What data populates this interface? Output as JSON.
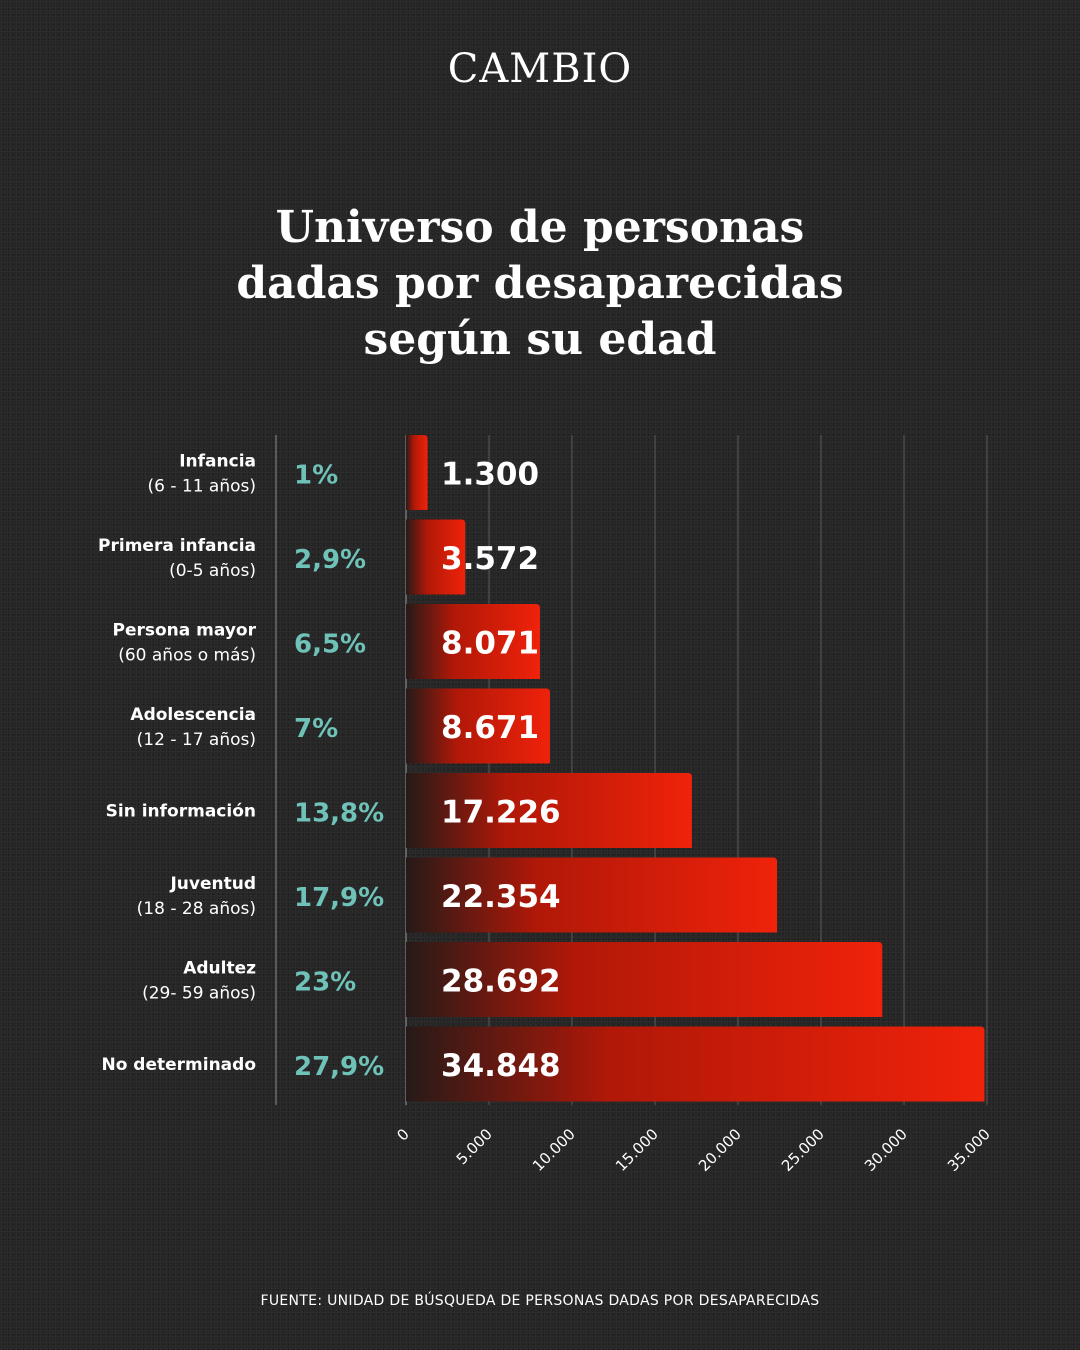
{
  "brand": "CAMBIO",
  "title_lines": [
    "Universo de personas",
    "dadas por desaparecidas",
    "según su edad"
  ],
  "source": "FUENTE: UNIDAD DE BÚSQUEDA DE PERSONAS DADAS POR DESAPARECIDAS",
  "colors": {
    "background": "#262626",
    "bar": "#f0220a",
    "percent": "#6fc2b8",
    "text": "#ffffff"
  },
  "chart_data": {
    "type": "bar",
    "orientation": "horizontal",
    "categories": [
      {
        "label": "Infancia",
        "sublabel": "(6 - 11 años)"
      },
      {
        "label": "Primera infancia",
        "sublabel": "(0-5 años)"
      },
      {
        "label": "Persona mayor",
        "sublabel": "(60 años o más)"
      },
      {
        "label": "Adolescencia",
        "sublabel": "(12 - 17 años)"
      },
      {
        "label": "Sin información",
        "sublabel": ""
      },
      {
        "label": "Juventud",
        "sublabel": "(18 - 28 años)"
      },
      {
        "label": "Adultez",
        "sublabel": "(29- 59 años)"
      },
      {
        "label": "No determinado",
        "sublabel": ""
      }
    ],
    "values": [
      1300,
      3572,
      8071,
      8671,
      17226,
      22354,
      28692,
      34848
    ],
    "value_labels": [
      "1.300",
      "3.572",
      "8.071",
      "8.671",
      "17.226",
      "22.354",
      "28.692",
      "34.848"
    ],
    "percentages": [
      "1%",
      "2,9%",
      "6,5%",
      "7%",
      "13,8%",
      "17,9%",
      "23%",
      "27,9%"
    ],
    "xlim": [
      0,
      35000
    ],
    "xticks": [
      0,
      5000,
      10000,
      15000,
      20000,
      25000,
      30000,
      35000
    ],
    "xtick_labels": [
      "0",
      "5.000",
      "10.000",
      "15.000",
      "20.000",
      "25.000",
      "30.000",
      "35.000"
    ],
    "grid": true,
    "title": "Universo de personas dadas por desaparecidas según su edad"
  }
}
